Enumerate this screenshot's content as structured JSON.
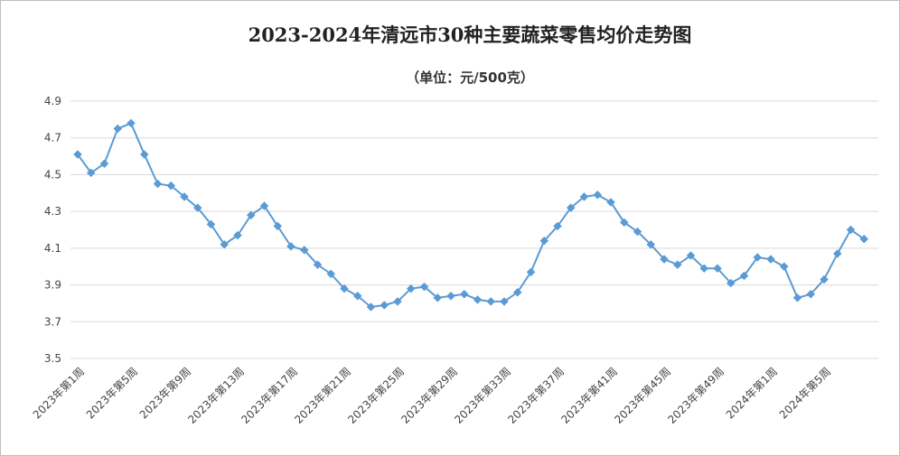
{
  "chart_data": {
    "type": "line",
    "title": "2023-2024年清远市30种主要蔬菜零售均价走势图",
    "subtitle": "（单位：元/500克）",
    "xlabel": "",
    "ylabel": "",
    "ylim": [
      3.5,
      4.9
    ],
    "yticks": [
      "3.5",
      "3.7",
      "3.9",
      "4.1",
      "4.3",
      "4.5",
      "4.7",
      "4.9"
    ],
    "grid": true,
    "legend": "none",
    "x_tick_labels": [
      "2023年第1周",
      "2023年第5周",
      "2023年第9周",
      "2023年第13周",
      "2023年第17周",
      "2023年第21周",
      "2023年第25周",
      "2023年第29周",
      "2023年第33周",
      "2023年第37周",
      "2023年第41周",
      "2023年第45周",
      "2023年第49周",
      "2024年第1周",
      "2024年第5周"
    ],
    "series": [
      {
        "color": "#5b9bd5",
        "values": [
          4.61,
          4.51,
          4.56,
          4.75,
          4.78,
          4.61,
          4.45,
          4.44,
          4.38,
          4.32,
          4.23,
          4.12,
          4.17,
          4.28,
          4.33,
          4.22,
          4.11,
          4.09,
          4.01,
          3.96,
          3.88,
          3.84,
          3.78,
          3.79,
          3.81,
          3.88,
          3.89,
          3.83,
          3.84,
          3.85,
          3.82,
          3.81,
          3.81,
          3.86,
          3.97,
          4.14,
          4.22,
          4.32,
          4.38,
          4.39,
          4.35,
          4.24,
          4.19,
          4.12,
          4.04,
          4.01,
          4.06,
          3.99,
          3.99,
          3.91,
          3.95,
          4.05,
          4.04,
          4.0,
          3.83,
          3.85,
          3.93,
          4.07,
          4.2,
          4.15
        ]
      }
    ]
  }
}
